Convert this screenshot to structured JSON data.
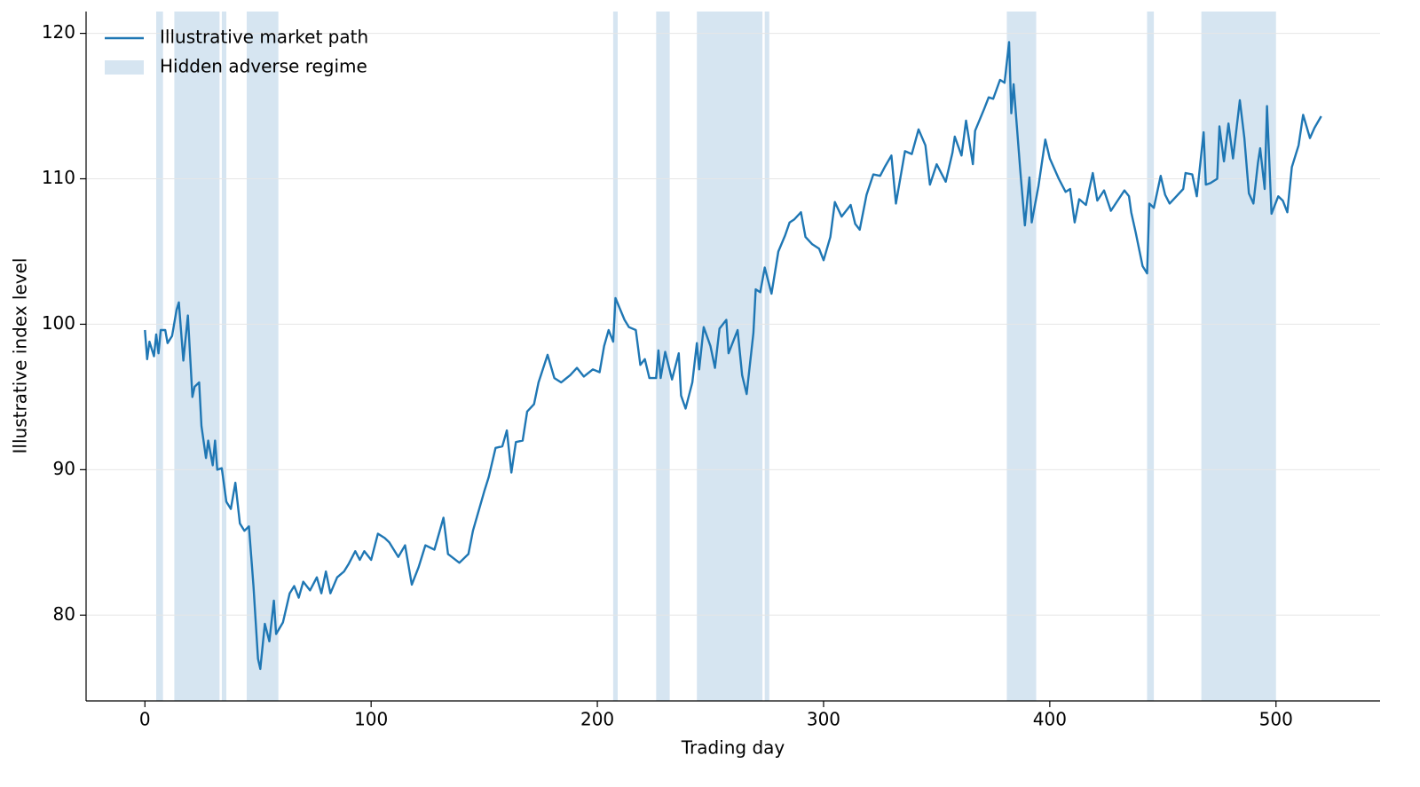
{
  "chart_data": {
    "type": "line",
    "xlabel": "Trading day",
    "ylabel": "Illustrative index level",
    "xlim": [
      -26,
      546
    ],
    "ylim": [
      74.1,
      121.5
    ],
    "xticks": [
      0,
      100,
      200,
      300,
      400,
      500
    ],
    "yticks": [
      80,
      90,
      100,
      110,
      120
    ],
    "grid": true,
    "legend": "upper left",
    "x": [
      0,
      1,
      2,
      4,
      5,
      6,
      7,
      9,
      10,
      12,
      14,
      15,
      17,
      19,
      21,
      22,
      24,
      25,
      27,
      28,
      30,
      31,
      32,
      34,
      36,
      38,
      40,
      42,
      44,
      46,
      48,
      50,
      51,
      53,
      55,
      57,
      58,
      61,
      64,
      66,
      68,
      70,
      73,
      76,
      78,
      80,
      82,
      85,
      88,
      90,
      93,
      95,
      97,
      100,
      103,
      106,
      108,
      112,
      115,
      118,
      121,
      124,
      128,
      132,
      134,
      139,
      143,
      145,
      150,
      152,
      155,
      158,
      160,
      162,
      164,
      167,
      169,
      172,
      174,
      178,
      181,
      184,
      188,
      191,
      194,
      198,
      201,
      203,
      205,
      207,
      208,
      212,
      214,
      217,
      219,
      221,
      223,
      226,
      227,
      228,
      230,
      233,
      236,
      237,
      239,
      242,
      244,
      245,
      247,
      250,
      252,
      254,
      257,
      258,
      262,
      264,
      266,
      269,
      270,
      272,
      274,
      277,
      280,
      283,
      285,
      287,
      290,
      292,
      295,
      298,
      300,
      303,
      305,
      308,
      312,
      314,
      316,
      319,
      322,
      325,
      327,
      330,
      332,
      336,
      339,
      342,
      345,
      347,
      350,
      354,
      357,
      358,
      361,
      363,
      366,
      367,
      371,
      373,
      375,
      378,
      380,
      382,
      383,
      384,
      387,
      389,
      391,
      392,
      395,
      398,
      400,
      404,
      407,
      409,
      411,
      413,
      416,
      419,
      421,
      424,
      427,
      430,
      433,
      435,
      436,
      438,
      441,
      443,
      444,
      446,
      449,
      451,
      453,
      456,
      459,
      460,
      463,
      465,
      468,
      469,
      471,
      474,
      475,
      477,
      479,
      481,
      484,
      486,
      488,
      490,
      492,
      493,
      495,
      496,
      498,
      501,
      503,
      505,
      507,
      510,
      512,
      515,
      517,
      520
    ],
    "series": [
      {
        "name": "Illustrative market path",
        "color": "#1f77b4",
        "values": [
          99.6,
          97.6,
          98.8,
          97.8,
          99.3,
          98,
          99.6,
          99.6,
          98.7,
          99.2,
          101,
          101.5,
          97.5,
          100.6,
          95,
          95.7,
          96,
          93,
          90.8,
          92,
          90.3,
          92,
          90,
          90.1,
          87.8,
          87.3,
          89.1,
          86.3,
          85.8,
          86.1,
          82,
          77,
          76.3,
          79.4,
          78.2,
          81,
          78.7,
          79.5,
          81.5,
          82,
          81.2,
          82.3,
          81.7,
          82.6,
          81.5,
          83,
          81.5,
          82.6,
          83,
          83.5,
          84.4,
          83.8,
          84.4,
          83.8,
          85.6,
          85.3,
          85,
          84,
          84.8,
          82.1,
          83.3,
          84.8,
          84.5,
          86.7,
          84.2,
          83.6,
          84.2,
          85.8,
          88.5,
          89.5,
          91.5,
          91.6,
          92.7,
          89.8,
          91.9,
          92,
          94,
          94.5,
          96,
          97.9,
          96.3,
          96,
          96.5,
          97,
          96.4,
          96.9,
          96.7,
          98.5,
          99.6,
          98.8,
          101.8,
          100.3,
          99.8,
          99.6,
          97.2,
          97.6,
          96.3,
          96.3,
          98.2,
          96.3,
          98.1,
          96.2,
          98,
          95.1,
          94.2,
          96,
          98.7,
          96.9,
          99.8,
          98.5,
          97,
          99.7,
          100.3,
          98,
          99.6,
          96.5,
          95.2,
          99.4,
          102.4,
          102.2,
          103.9,
          102.1,
          105,
          106.1,
          107,
          107.2,
          107.7,
          106,
          105.5,
          105.2,
          104.4,
          106,
          108.4,
          107.4,
          108.2,
          106.9,
          106.5,
          108.9,
          110.3,
          110.2,
          110.8,
          111.6,
          108.3,
          111.9,
          111.7,
          113.4,
          112.3,
          109.6,
          111,
          109.8,
          111.8,
          112.9,
          111.6,
          114,
          111,
          113.3,
          114.8,
          115.6,
          115.5,
          116.8,
          116.6,
          119.4,
          114.5,
          116.5,
          110.5,
          106.8,
          110.1,
          107,
          109.5,
          112.7,
          111.4,
          110,
          109.1,
          109.3,
          107,
          108.6,
          108.2,
          110.4,
          108.5,
          109.2,
          107.8,
          108.5,
          109.2,
          108.8,
          107.7,
          106.3,
          104,
          103.5,
          108.3,
          108,
          110.2,
          108.9,
          108.3,
          108.8,
          109.3,
          110.4,
          110.3,
          108.8,
          113.2,
          109.6,
          109.7,
          110,
          113.6,
          111.2,
          113.8,
          111.4,
          115.4,
          112.8,
          109,
          108.3,
          111.1,
          112.1,
          109.3,
          115,
          107.6,
          108.8,
          108.5,
          107.7,
          110.8,
          112.3,
          114.4,
          112.8,
          113.5,
          114.3
        ]
      }
    ],
    "regions": {
      "name": "Hidden adverse regime",
      "color": "#d6e5f1",
      "spans": [
        [
          5,
          8
        ],
        [
          13,
          33
        ],
        [
          34,
          36
        ],
        [
          45,
          59
        ],
        [
          207,
          209
        ],
        [
          226,
          232
        ],
        [
          244,
          273
        ],
        [
          274,
          276
        ],
        [
          381,
          394
        ],
        [
          443,
          446
        ],
        [
          467,
          500
        ]
      ]
    }
  }
}
